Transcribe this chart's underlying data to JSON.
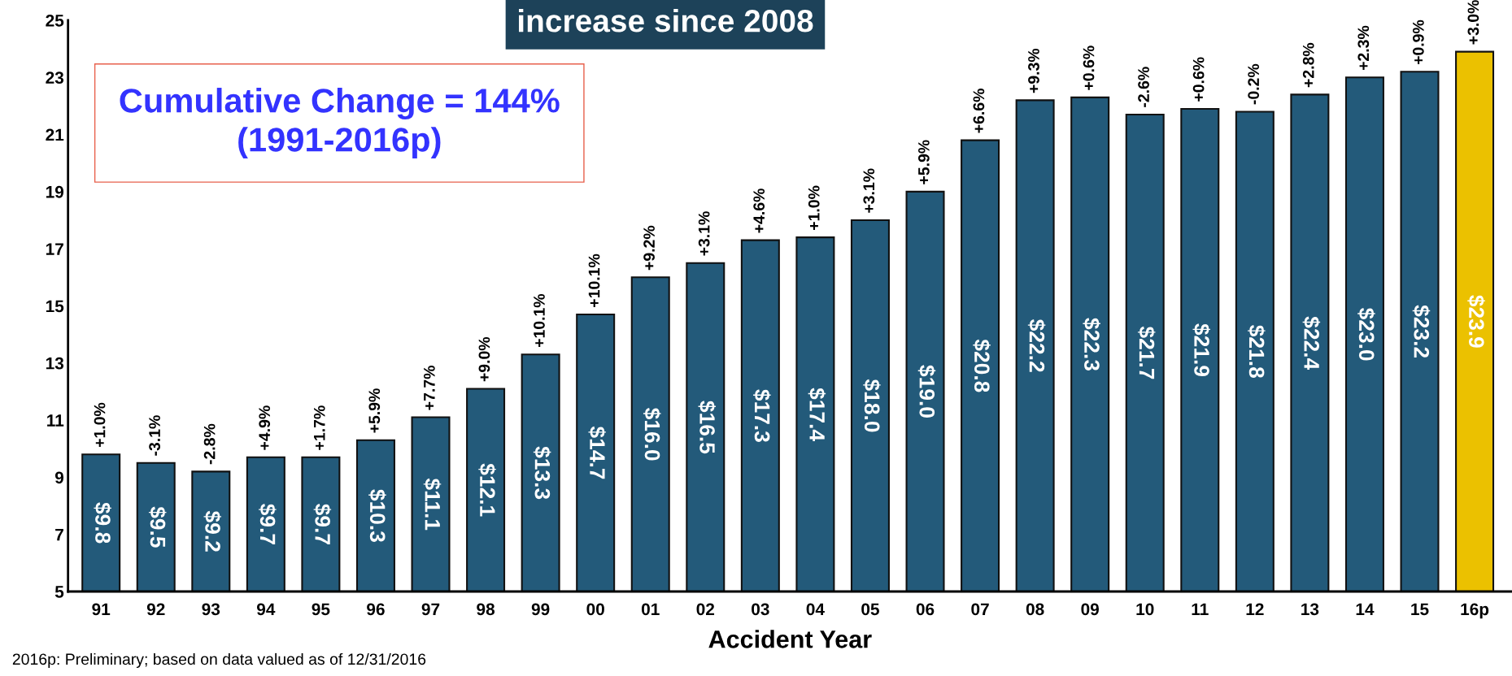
{
  "chart_data": {
    "type": "bar",
    "xlabel": "Accident Year",
    "categories": [
      "91",
      "92",
      "93",
      "94",
      "95",
      "96",
      "97",
      "98",
      "99",
      "00",
      "01",
      "02",
      "03",
      "04",
      "05",
      "06",
      "07",
      "08",
      "09",
      "10",
      "11",
      "12",
      "13",
      "14",
      "15",
      "16p"
    ],
    "values": [
      9.8,
      9.5,
      9.2,
      9.7,
      9.7,
      10.3,
      11.1,
      12.1,
      13.3,
      14.7,
      16.0,
      16.5,
      17.3,
      17.4,
      18.0,
      19.0,
      20.8,
      22.2,
      22.3,
      21.7,
      21.9,
      21.8,
      22.4,
      23.0,
      23.2,
      23.9
    ],
    "colors": [
      "#235a7a",
      "#235a7a",
      "#235a7a",
      "#235a7a",
      "#235a7a",
      "#235a7a",
      "#235a7a",
      "#235a7a",
      "#235a7a",
      "#235a7a",
      "#235a7a",
      "#235a7a",
      "#235a7a",
      "#235a7a",
      "#235a7a",
      "#235a7a",
      "#235a7a",
      "#235a7a",
      "#235a7a",
      "#235a7a",
      "#235a7a",
      "#235a7a",
      "#235a7a",
      "#235a7a",
      "#235a7a",
      "#ebc100"
    ],
    "value_labels": [
      "$9.8",
      "$9.5",
      "$9.2",
      "$9.7",
      "$9.7",
      "$10.3",
      "$11.1",
      "$12.1",
      "$13.3",
      "$14.7",
      "$16.0",
      "$16.5",
      "$17.3",
      "$17.4",
      "$18.0",
      "$19.0",
      "$20.8",
      "$22.2",
      "$22.3",
      "$21.7",
      "$21.9",
      "$21.8",
      "$22.4",
      "$23.0",
      "$23.2",
      "$23.9"
    ],
    "ylim": [
      5,
      25
    ],
    "yticks": [
      5,
      7,
      9,
      11,
      13,
      15,
      17,
      19,
      21,
      23,
      25
    ],
    "grid": false,
    "legend": false,
    "annotations": [
      {
        "text": "+1.0%",
        "x": "91",
        "y": 9.8
      },
      {
        "text": "-3.1%",
        "x": "92",
        "y": 9.5
      },
      {
        "text": "-2.8%",
        "x": "93",
        "y": 9.2
      },
      {
        "text": "+4.9%",
        "x": "94",
        "y": 9.7
      },
      {
        "text": "+1.7%",
        "x": "95",
        "y": 9.7
      },
      {
        "text": "+5.9%",
        "x": "96",
        "y": 10.3
      },
      {
        "text": "+7.7%",
        "x": "97",
        "y": 11.1
      },
      {
        "text": "+9.0%",
        "x": "98",
        "y": 12.1
      },
      {
        "text": "+10.1%",
        "x": "99",
        "y": 13.3
      },
      {
        "text": "+10.1%",
        "x": "00",
        "y": 14.7
      },
      {
        "text": "+9.2%",
        "x": "01",
        "y": 16.0
      },
      {
        "text": "+3.1%",
        "x": "02",
        "y": 16.5
      },
      {
        "text": "+4.6%",
        "x": "03",
        "y": 17.3
      },
      {
        "text": "+1.0%",
        "x": "04",
        "y": 17.4
      },
      {
        "text": "+3.1%",
        "x": "05",
        "y": 18.0
      },
      {
        "text": "+5.9%",
        "x": "06",
        "y": 19.0
      },
      {
        "text": "+6.6%",
        "x": "07",
        "y": 20.8
      },
      {
        "text": "+9.3%",
        "x": "08",
        "y": 22.2
      },
      {
        "text": "+0.6%",
        "x": "09",
        "y": 22.3
      },
      {
        "text": "-2.6%",
        "x": "10",
        "y": 21.7
      },
      {
        "text": "+0.6%",
        "x": "11",
        "y": 21.9
      },
      {
        "text": "-0.2%",
        "x": "12",
        "y": 21.8
      },
      {
        "text": "+2.8%",
        "x": "13",
        "y": 22.4
      },
      {
        "text": "+2.3%",
        "x": "14",
        "y": 23.0
      },
      {
        "text": "+0.9%",
        "x": "15",
        "y": 23.2
      },
      {
        "text": "+3.0%",
        "x": "16p",
        "y": 23.9
      },
      "increase since 2008",
      "Cumulative Change = 144%\n(1991-2016p)",
      "2016p: Preliminary; based on data valued as of 12/31/2016"
    ]
  }
}
